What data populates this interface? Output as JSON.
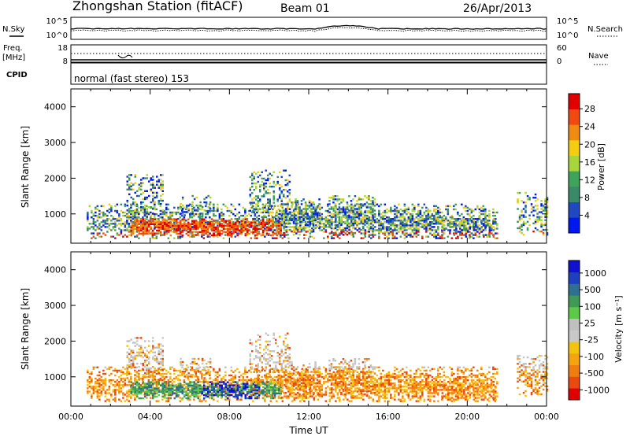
{
  "header": {
    "station": "Zhongshan Station (fitACF)",
    "beam": "Beam 01",
    "date": "26/Apr/2013"
  },
  "panels": {
    "nsky_label": "N.Sky",
    "nsearch_label": "N.Search",
    "freq_label_line1": "Freq.",
    "freq_label_line2": "[MHz]",
    "nave_label": "Nave",
    "cpid_label": "CPID",
    "cpid_value": "normal (fast stereo) 153",
    "noise_left_ticks": [
      "10^5",
      "10^0"
    ],
    "noise_right_ticks": [
      "10^5",
      "10^0"
    ],
    "freq_left_ticks": [
      "18",
      "8"
    ],
    "freq_right_ticks": [
      "60",
      "0"
    ]
  },
  "colors": {
    "power_scale": [
      "#0018f0",
      "#2048c0",
      "#3a8a6a",
      "#3fa35a",
      "#a7d53a",
      "#f4cc10",
      "#f08a10",
      "#f04a10",
      "#e00000"
    ],
    "velocity_scale": [
      "#1010d0",
      "#1e3fc0",
      "#2f6f90",
      "#3f9a55",
      "#5ec84a",
      "#c0c0c0",
      "#c8c8c8",
      "#f2c40e",
      "#f5a40f",
      "#f07d10",
      "#ea4a10",
      "#e00000"
    ]
  },
  "chart_data": [
    {
      "type": "heatmap",
      "name": "power",
      "ylabel": "Slant Range [km]",
      "yticks": [
        "1000",
        "2000",
        "3000",
        "4000"
      ],
      "ylim": [
        180,
        4500
      ],
      "colorbar_label": "Power [dB]",
      "colorbar_ticks": [
        "4",
        "8",
        "12",
        "16",
        "20",
        "24",
        "28"
      ],
      "colorbar_range": [
        0,
        30
      ]
    },
    {
      "type": "heatmap",
      "name": "velocity",
      "ylabel": "Slant Range [km]",
      "yticks": [
        "1000",
        "2000",
        "3000",
        "4000"
      ],
      "ylim": [
        180,
        4500
      ],
      "colorbar_label": "Velocity [m s⁻¹]",
      "colorbar_ticks": [
        "1000",
        "500",
        "100",
        "25",
        "-25",
        "-100",
        "-500",
        "-1000"
      ],
      "xlabel": "Time UT",
      "xticks": [
        "00:00",
        "04:00",
        "08:00",
        "12:00",
        "16:00",
        "20:00",
        "00:00"
      ],
      "xlim_hours": [
        0,
        24
      ]
    }
  ]
}
